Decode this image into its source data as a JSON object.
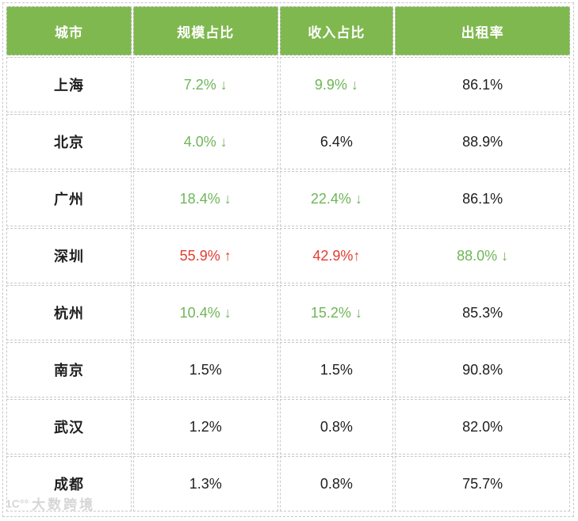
{
  "chart_data": {
    "type": "table",
    "title": "",
    "columns": [
      "城市",
      "规模占比",
      "收入占比",
      "出租率"
    ],
    "rows": [
      {
        "cells": [
          "上海",
          "7.2% ↓",
          "9.9% ↓",
          "86.1%"
        ],
        "cell_colors": [
          "black",
          "green",
          "green",
          "black"
        ]
      },
      {
        "cells": [
          "北京",
          "4.0% ↓",
          "6.4%",
          "88.9%"
        ],
        "cell_colors": [
          "black",
          "green",
          "black",
          "black"
        ]
      },
      {
        "cells": [
          "广州",
          "18.4% ↓",
          "22.4% ↓",
          "86.1%"
        ],
        "cell_colors": [
          "black",
          "green",
          "green",
          "black"
        ]
      },
      {
        "cells": [
          "深圳",
          "55.9% ↑",
          "42.9%↑",
          "88.0% ↓"
        ],
        "cell_colors": [
          "black",
          "red",
          "red",
          "green"
        ]
      },
      {
        "cells": [
          "杭州",
          "10.4% ↓",
          "15.2% ↓",
          "85.3%"
        ],
        "cell_colors": [
          "black",
          "green",
          "green",
          "black"
        ]
      },
      {
        "cells": [
          "南京",
          "1.5%",
          "1.5%",
          "90.8%"
        ],
        "cell_colors": [
          "black",
          "black",
          "black",
          "black"
        ]
      },
      {
        "cells": [
          "武汉",
          "1.2%",
          "0.8%",
          "82.0%"
        ],
        "cell_colors": [
          "black",
          "black",
          "black",
          "black"
        ]
      },
      {
        "cells": [
          "成都",
          "1.3%",
          "0.8%",
          "75.7%"
        ],
        "cell_colors": [
          "black",
          "black",
          "black",
          "black"
        ]
      }
    ],
    "legend_position": "none",
    "grid": "dashed"
  },
  "watermark": {
    "logo_glyph": "1C°°",
    "text": "大数跨境"
  },
  "colors": {
    "header_bg": "#80b850",
    "header_text": "#ffffff",
    "trend_green": "#6eb657",
    "trend_red": "#e23c32",
    "value_black": "#1e1e1e",
    "border_gray": "#c8c8c8",
    "watermark_gray": "#d6d6d6"
  }
}
